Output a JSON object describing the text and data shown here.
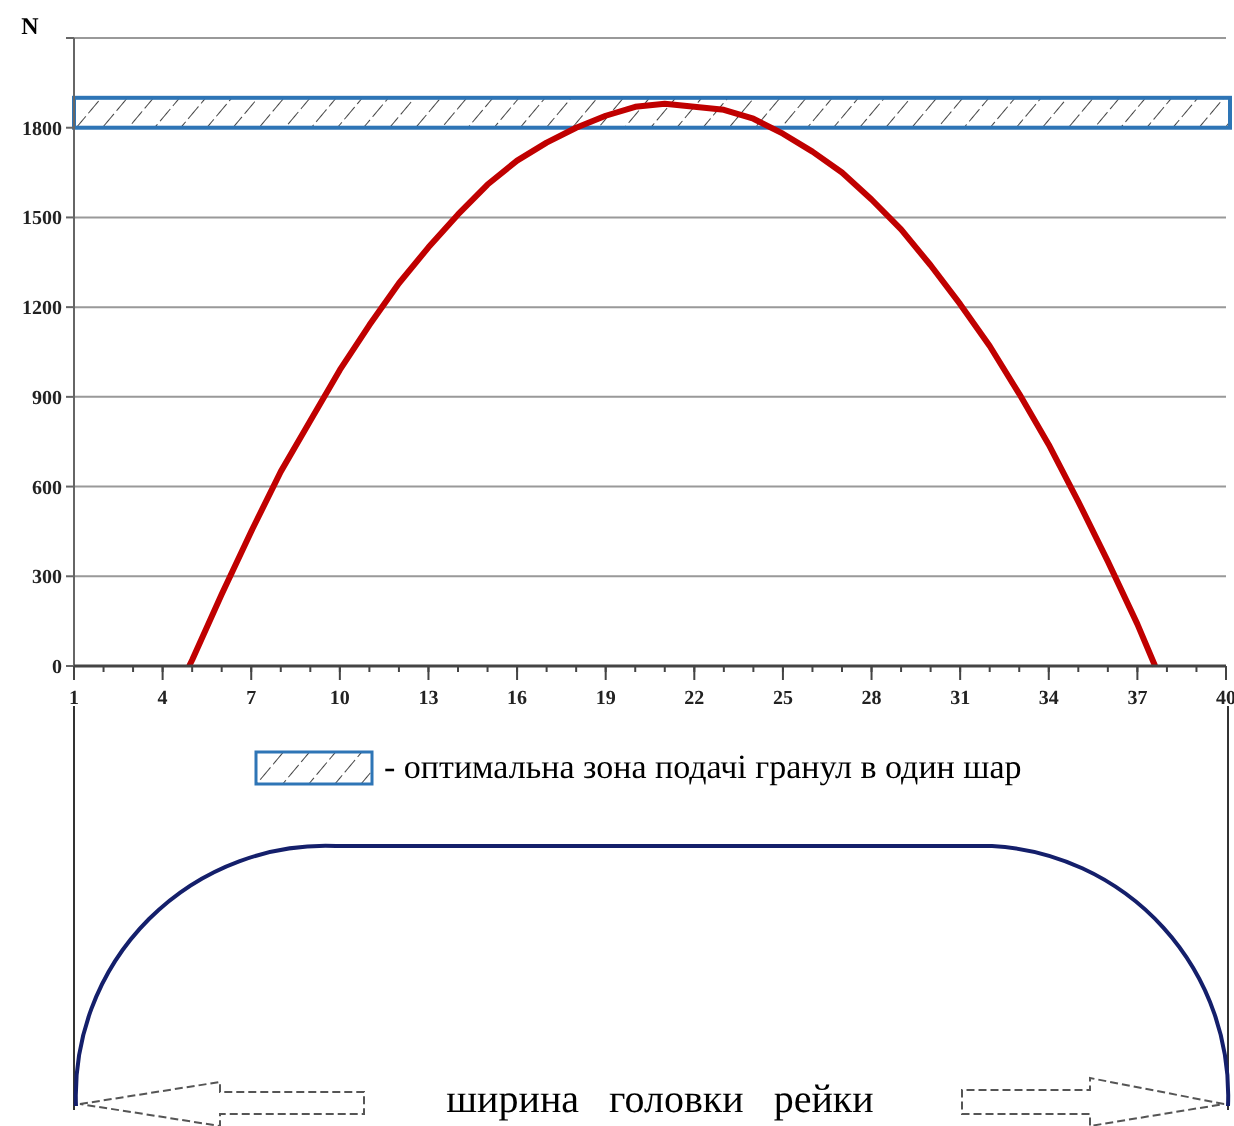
{
  "chart_data": {
    "type": "line",
    "ylabel": "N",
    "x": [
      4.9,
      5,
      6,
      7,
      8,
      9,
      10,
      11,
      12,
      13,
      14,
      15,
      16,
      17,
      18,
      19,
      20,
      21,
      22,
      23,
      24,
      25,
      26,
      27,
      28,
      29,
      30,
      31,
      32,
      33,
      34,
      35,
      36,
      37,
      37.6
    ],
    "series": [
      {
        "color": "#c00000",
        "values": [
          0,
          20,
          240,
          450,
          650,
          820,
          990,
          1140,
          1280,
          1400,
          1510,
          1610,
          1690,
          1750,
          1800,
          1840,
          1870,
          1880,
          1870,
          1860,
          1830,
          1780,
          1720,
          1650,
          1560,
          1460,
          1340,
          1210,
          1070,
          910,
          740,
          550,
          350,
          140,
          0
        ]
      }
    ],
    "xlim": [
      1,
      40
    ],
    "xticks": [
      1,
      4,
      7,
      10,
      13,
      16,
      19,
      22,
      25,
      28,
      31,
      34,
      37,
      40
    ],
    "ylim": [
      0,
      2100
    ],
    "yticks": [
      0,
      300,
      600,
      900,
      1200,
      1500,
      1800,
      {
        "value": 2100,
        "label": null
      }
    ],
    "grid": "y",
    "marker": "none",
    "line_style": "solid",
    "bands": [
      {
        "axis": "y",
        "from": 1800,
        "to": 1900,
        "color": "#2e75b6",
        "label": "- оптимальна зона подачі гранул в один шар"
      }
    ],
    "annotations": [
      "ширина   головки   рейки"
    ]
  }
}
